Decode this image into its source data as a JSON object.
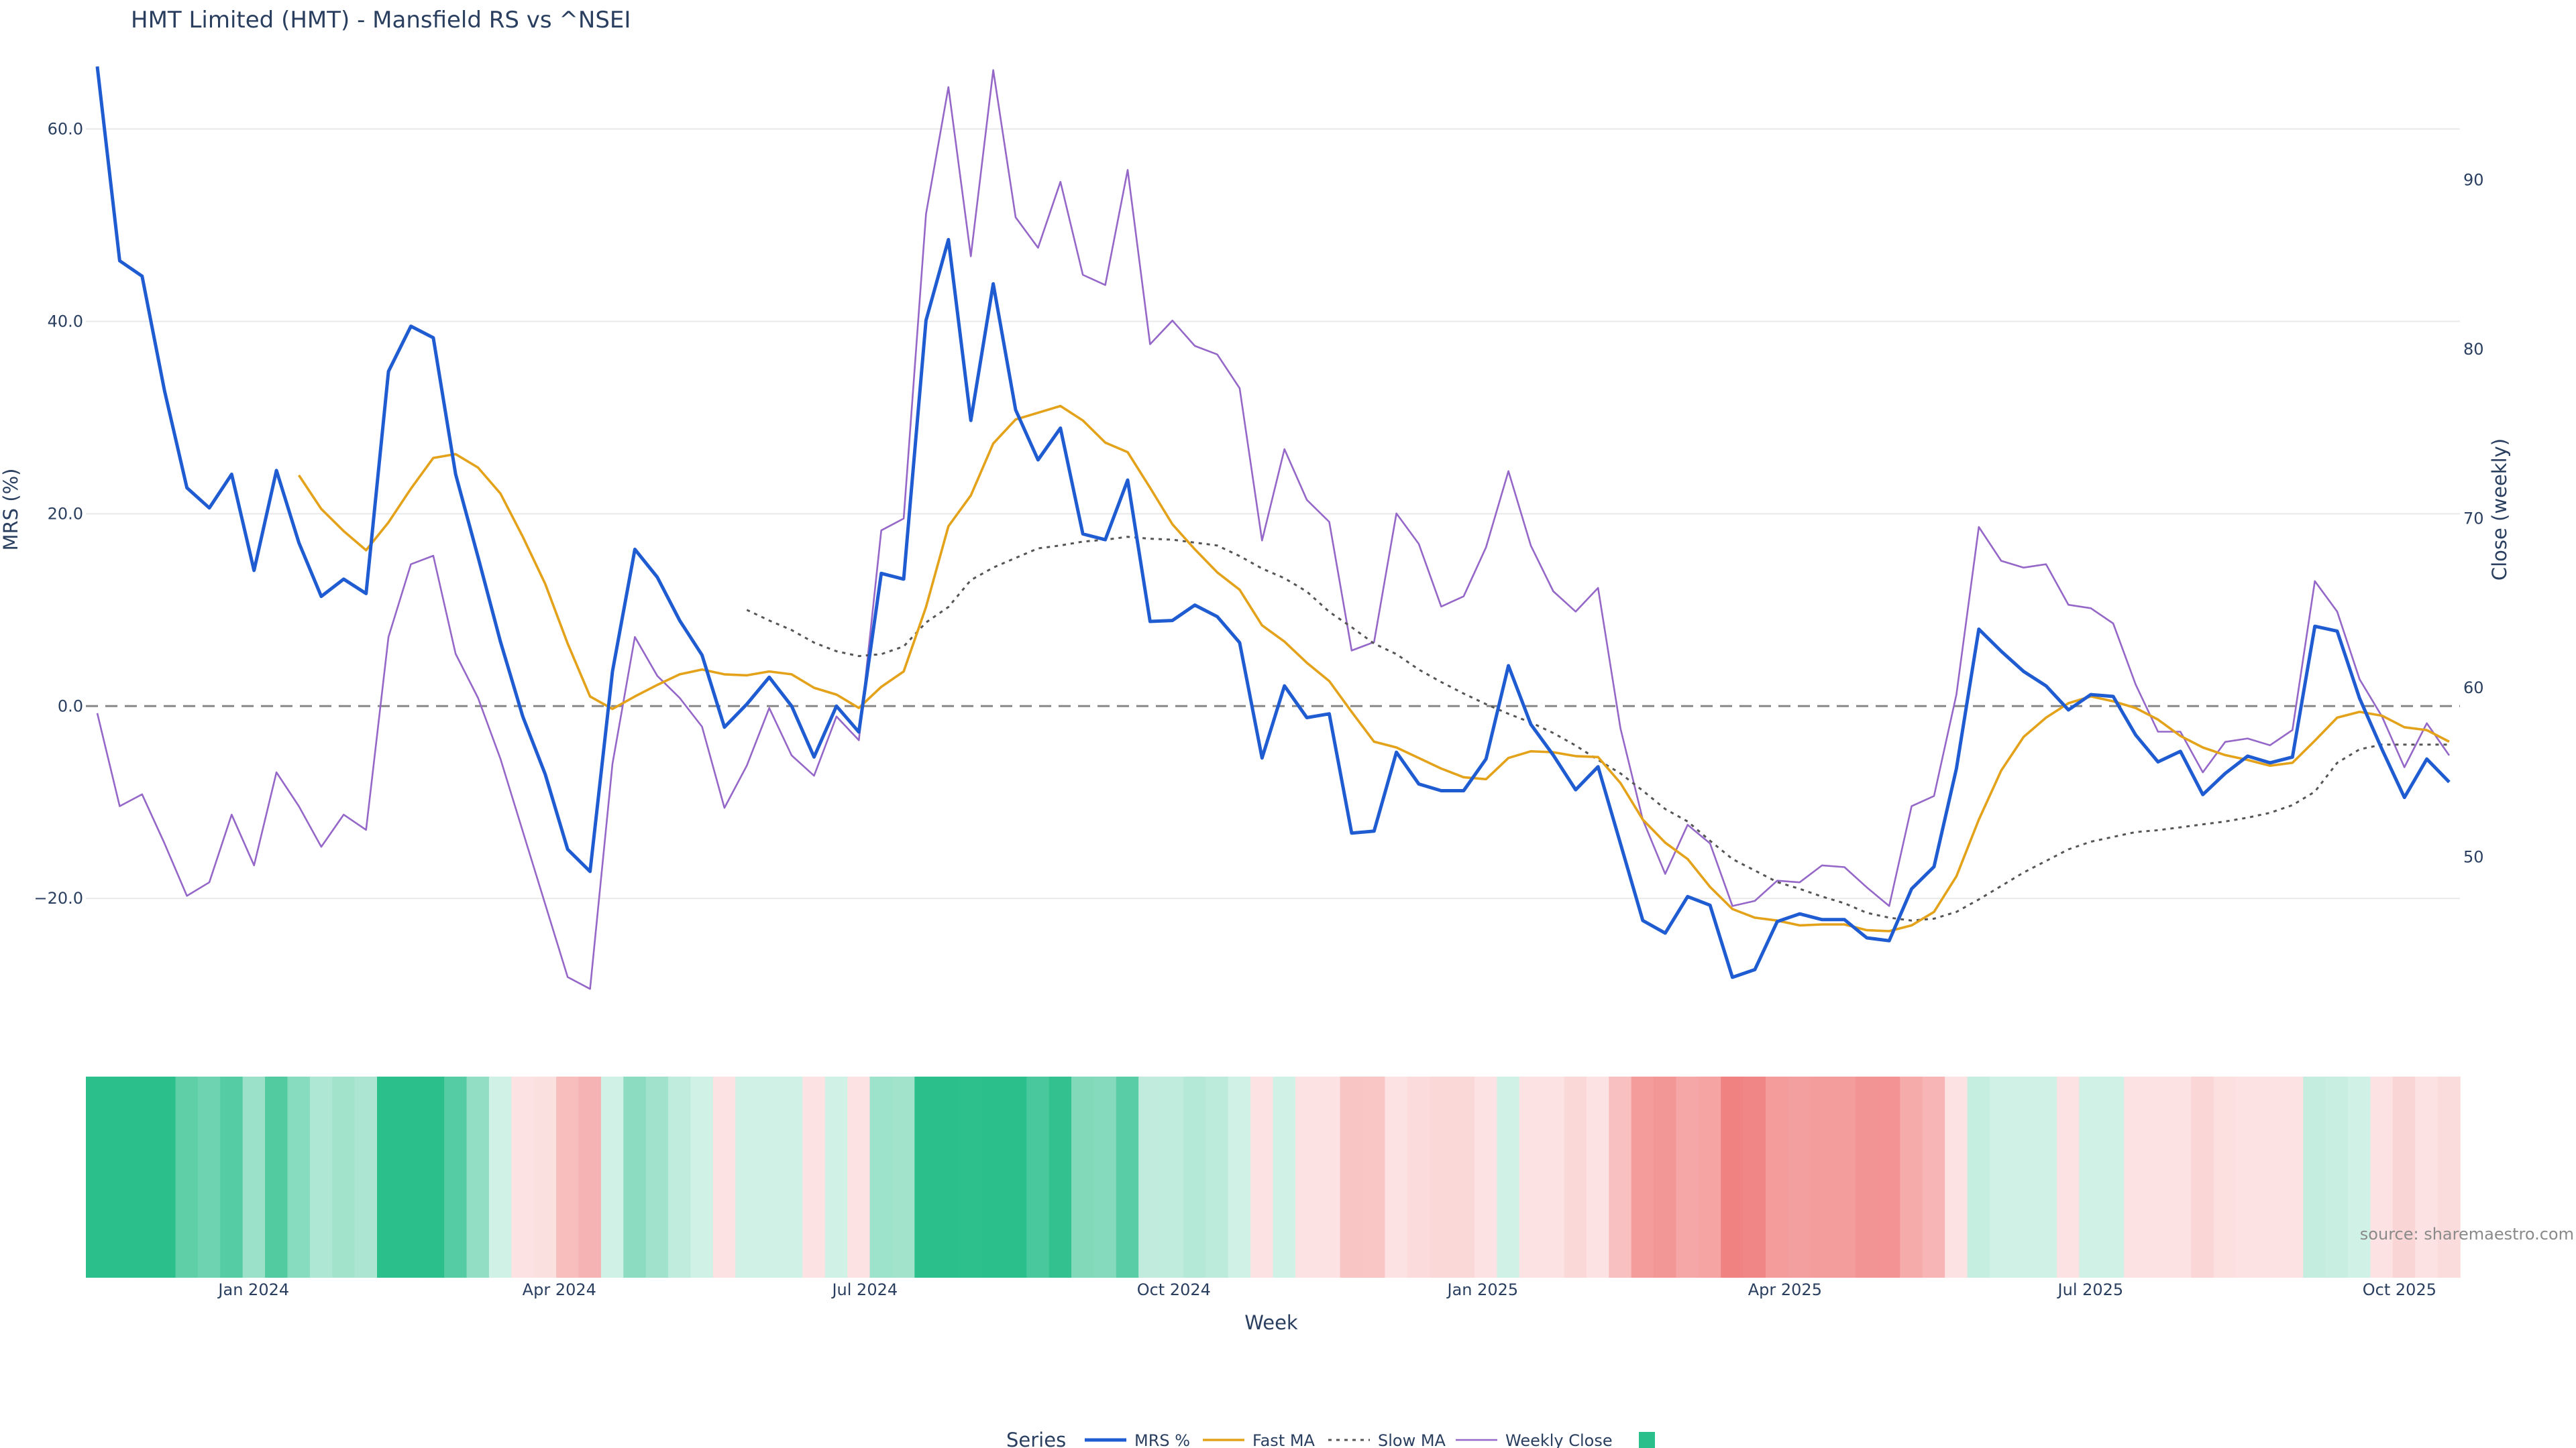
{
  "chart_data": {
    "type": "line",
    "title": "HMT Limited (HMT) - Mansfield RS vs ^NSEI",
    "xlabel": "Week",
    "ylabel_left": "MRS (%)",
    "ylabel_right": "Close (weekly)",
    "source": "source: sharemaestro.com",
    "legend": {
      "title": "Series",
      "position": "bottom-center",
      "entries": [
        "MRS %",
        "Fast MA",
        "Slow MA",
        "Weekly Close",
        ""
      ]
    },
    "left_axis": {
      "range": [
        -28,
        67
      ],
      "ticks": [
        "60.0",
        "40.0",
        "20.0",
        "0.0",
        "−20.0"
      ],
      "tick_values": [
        60,
        40,
        20,
        0,
        -20
      ]
    },
    "right_axis": {
      "range": [
        43,
        97
      ],
      "ticks": [
        "90",
        "80",
        "70",
        "60",
        "50"
      ],
      "tick_values": [
        90,
        80,
        70,
        60,
        50
      ]
    },
    "x_axis": {
      "start_date": "2023-11-12",
      "end_date": "2025-10-19",
      "ticks": [
        "Jan 2024",
        "Apr 2024",
        "Jul 2024",
        "Oct 2024",
        "Jan 2025",
        "Apr 2025",
        "Jul 2025",
        "Oct 2025"
      ],
      "tick_dates": [
        "2024-01-01",
        "2024-04-01",
        "2024-07-01",
        "2024-10-01",
        "2025-01-01",
        "2025-04-01",
        "2025-07-01",
        "2025-10-01"
      ]
    },
    "grid": true,
    "zero_line": "dashed",
    "colors": {
      "mrs": "#1f5bd1",
      "fast": "#e3a21a",
      "slow": "#555555",
      "close": "#9467c8",
      "heat_pos": "#2bbf8c",
      "heat_neg": "#f07a7a"
    },
    "series": [
      {
        "name": "MRS %",
        "values": [
          66.5,
          46.3,
          44.7,
          32.8,
          22.7,
          20.6,
          24.1,
          14.1,
          24.5,
          17.0,
          11.4,
          13.2,
          11.7,
          34.8,
          39.5,
          38.3,
          24.1,
          15.5,
          6.7,
          -1.1,
          -7.1,
          -14.9,
          -17.2,
          3.6,
          16.3,
          13.4,
          8.9,
          5.3,
          -2.2,
          0.2,
          3.0,
          0.0,
          -5.3,
          0.0,
          -2.7,
          13.8,
          13.2,
          40.1,
          48.5,
          29.7,
          43.9,
          30.8,
          25.6,
          28.9,
          17.9,
          17.3,
          23.5,
          8.8,
          8.9,
          10.5,
          9.3,
          6.6,
          -5.4,
          2.1,
          -1.2,
          -0.8,
          -13.2,
          -13.0,
          -4.8,
          -8.1,
          -8.8,
          -8.8,
          -5.5,
          4.2,
          -1.9,
          -5.1,
          -8.7,
          -6.3,
          -14.3,
          -22.3,
          -23.6,
          -19.8,
          -20.7,
          -28.2,
          -27.4,
          -22.4,
          -21.6,
          -22.2,
          -22.2,
          -24.1,
          -24.4,
          -19.0,
          -16.7,
          -6.5,
          8.0,
          5.7,
          3.6,
          2.1,
          -0.4,
          1.2,
          1.0,
          -3.0,
          -5.8,
          -4.7,
          -9.2,
          -7.0,
          -5.2,
          -5.9,
          -5.3,
          8.3,
          7.8,
          0.8,
          -4.5,
          -9.5,
          -5.5,
          -7.9
        ]
      },
      {
        "name": "Fast MA",
        "values": [
          null,
          null,
          null,
          null,
          null,
          null,
          null,
          null,
          null,
          24.0,
          20.5,
          18.2,
          16.2,
          19.1,
          22.6,
          25.8,
          26.2,
          24.8,
          22.1,
          17.6,
          12.7,
          6.5,
          1.0,
          -0.3,
          1.0,
          2.2,
          3.3,
          3.8,
          3.3,
          3.2,
          3.6,
          3.3,
          1.9,
          1.2,
          -0.2,
          2.0,
          3.6,
          10.3,
          18.7,
          21.9,
          27.3,
          29.8,
          30.5,
          31.2,
          29.7,
          27.4,
          26.4,
          22.7,
          18.9,
          16.3,
          13.9,
          12.1,
          8.4,
          6.7,
          4.5,
          2.6,
          -0.6,
          -3.7,
          -4.3,
          -5.4,
          -6.5,
          -7.4,
          -7.6,
          -5.4,
          -4.7,
          -4.8,
          -5.2,
          -5.3,
          -8.0,
          -11.8,
          -14.2,
          -15.9,
          -18.8,
          -21.1,
          -22.0,
          -22.3,
          -22.8,
          -22.7,
          -22.7,
          -23.3,
          -23.4,
          -22.8,
          -21.4,
          -17.7,
          -11.8,
          -6.7,
          -3.2,
          -1.2,
          0.3,
          1.0,
          0.5,
          -0.2,
          -1.4,
          -3.1,
          -4.3,
          -5.1,
          -5.6,
          -6.2,
          -5.9,
          -3.6,
          -1.2,
          -0.6,
          -1.0,
          -2.2,
          -2.5,
          -3.7
        ]
      },
      {
        "name": "Slow MA",
        "values": [
          null,
          null,
          null,
          null,
          null,
          null,
          null,
          null,
          null,
          null,
          null,
          null,
          null,
          null,
          null,
          null,
          null,
          null,
          null,
          null,
          null,
          null,
          null,
          null,
          null,
          null,
          null,
          null,
          null,
          10.0,
          8.9,
          7.9,
          6.6,
          5.7,
          5.2,
          5.4,
          6.2,
          8.7,
          10.3,
          13.1,
          14.4,
          15.4,
          16.4,
          16.7,
          17.1,
          17.3,
          17.6,
          17.4,
          17.3,
          17.0,
          16.7,
          15.6,
          14.3,
          13.3,
          11.9,
          9.8,
          8.2,
          6.5,
          5.4,
          3.8,
          2.5,
          1.3,
          0.2,
          -0.8,
          -1.7,
          -2.8,
          -4.1,
          -5.6,
          -7.0,
          -8.8,
          -10.7,
          -12.0,
          -14.0,
          -15.9,
          -17.1,
          -18.3,
          -19.0,
          -19.8,
          -20.5,
          -21.5,
          -22.0,
          -22.3,
          -22.1,
          -21.4,
          -20.1,
          -18.7,
          -17.3,
          -16.1,
          -14.9,
          -14.1,
          -13.6,
          -13.1,
          -12.9,
          -12.6,
          -12.3,
          -12.0,
          -11.6,
          -11.1,
          -10.3,
          -8.9,
          -5.9,
          -4.5,
          -4.0,
          -4.0,
          -4.0,
          -4.0
        ]
      },
      {
        "name": "Weekly Close",
        "values": [
          58.5,
          53.0,
          53.7,
          50.8,
          47.7,
          48.5,
          52.5,
          49.5,
          55.0,
          53.0,
          50.6,
          52.5,
          51.6,
          63.0,
          67.3,
          67.8,
          62.0,
          59.4,
          55.8,
          51.5,
          47.2,
          42.9,
          42.2,
          55.5,
          63.0,
          60.7,
          59.4,
          57.7,
          52.9,
          55.4,
          58.8,
          56.0,
          54.8,
          58.3,
          56.9,
          69.3,
          70.0,
          88.0,
          95.5,
          85.5,
          96.5,
          87.8,
          86.0,
          89.9,
          84.4,
          83.8,
          90.6,
          80.3,
          81.7,
          80.2,
          79.7,
          77.7,
          68.7,
          74.1,
          71.1,
          69.8,
          62.2,
          62.7,
          70.3,
          68.5,
          64.8,
          65.4,
          68.3,
          72.8,
          68.4,
          65.7,
          64.5,
          65.9,
          57.6,
          52.2,
          49.0,
          51.9,
          50.8,
          47.1,
          47.4,
          48.6,
          48.5,
          49.5,
          49.4,
          48.2,
          47.1,
          53.0,
          53.6,
          59.6,
          69.5,
          67.5,
          67.1,
          67.3,
          64.9,
          64.7,
          63.8,
          60.2,
          57.4,
          57.4,
          55.0,
          56.8,
          57.0,
          56.6,
          57.5,
          66.3,
          64.5,
          60.5,
          58.3,
          55.3,
          57.9,
          56.0
        ]
      }
    ],
    "heatmap_strip": {
      "description_values": "per-week MRS shading; positive green, negative red",
      "values_ref": "MRS %"
    }
  }
}
